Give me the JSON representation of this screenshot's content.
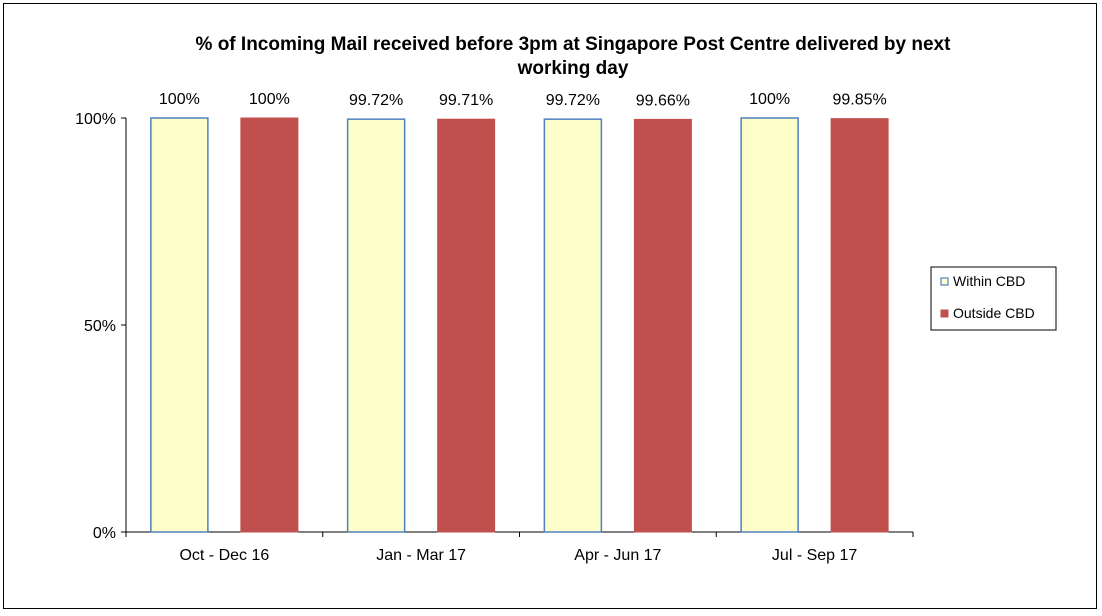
{
  "chart_data": {
    "type": "bar",
    "title": "% of Incoming Mail received before 3pm at Singapore Post Centre delivered by next working day",
    "title_lines": [
      "% of Incoming Mail received before 3pm at Singapore Post Centre delivered by next",
      "working day"
    ],
    "categories": [
      "Oct - Dec 16",
      "Jan - Mar 17",
      "Apr - Jun 17",
      "Jul - Sep 17"
    ],
    "series": [
      {
        "name": "Within CBD",
        "values": [
          100,
          99.72,
          99.72,
          100
        ],
        "labels": [
          "100%",
          "99.72%",
          "99.72%",
          "100%"
        ],
        "fill": "#FFFFCC",
        "stroke": "#4F81BD"
      },
      {
        "name": "Outside CBD",
        "values": [
          100,
          99.71,
          99.66,
          99.85
        ],
        "labels": [
          "100%",
          "99.71%",
          "99.66%",
          "99.85%"
        ],
        "fill": "#C0504D",
        "stroke": "#C0504D"
      }
    ],
    "ylim": [
      0,
      100
    ],
    "yticks": [
      0,
      50,
      100
    ],
    "ytick_labels": [
      "0%",
      "50%",
      "100%"
    ],
    "xlabel": "",
    "ylabel": "",
    "grid": false,
    "legend_position": "right"
  }
}
